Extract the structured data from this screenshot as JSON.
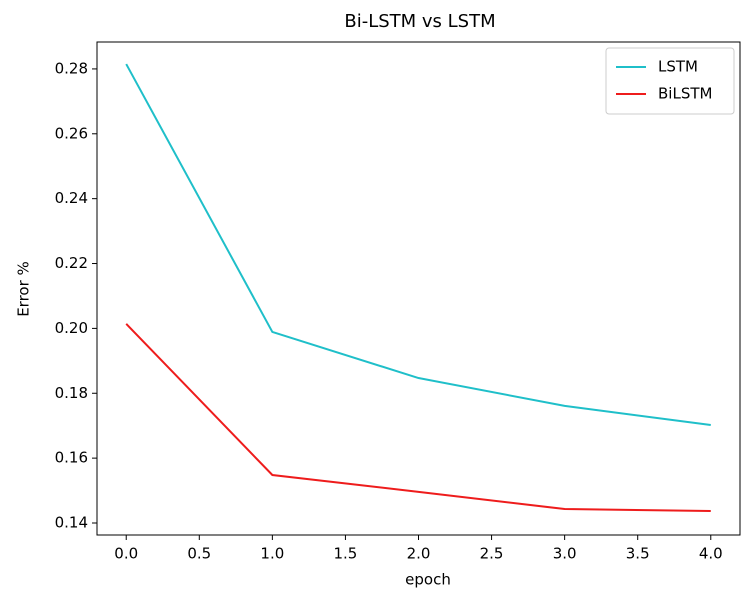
{
  "chart_data": {
    "type": "line",
    "title": "Bi-LSTM vs LSTM",
    "x_label": "epoch",
    "y_label": "Error %",
    "x": [
      0,
      1,
      2,
      3,
      4
    ],
    "series": [
      {
        "name": "LSTM",
        "color": "#1fbfc9",
        "values": [
          0.2815,
          0.1989,
          0.1847,
          0.1761,
          0.1702
        ]
      },
      {
        "name": "BiLSTM",
        "color": "#ee1c1c",
        "values": [
          0.2014,
          0.1548,
          0.1496,
          0.1443,
          0.1437
        ]
      }
    ],
    "xlim": [
      -0.2,
      4.2
    ],
    "xticks": [
      {
        "value": 0,
        "label": "0.0"
      },
      0.5,
      {
        "value": 1,
        "label": "1.0"
      },
      1.5,
      {
        "value": 2,
        "label": "2.0"
      },
      2.5,
      {
        "value": 3,
        "label": "3.0"
      },
      3.5,
      {
        "value": 4,
        "label": "4.0"
      }
    ],
    "ylim": [
      0.1363,
      0.2883
    ],
    "yticks": [
      0.14,
      0.16,
      0.18,
      {
        "value": 0.2,
        "label": "0.20"
      },
      0.22,
      0.24,
      0.26,
      0.28
    ],
    "grid": false,
    "legend": "upper right"
  }
}
